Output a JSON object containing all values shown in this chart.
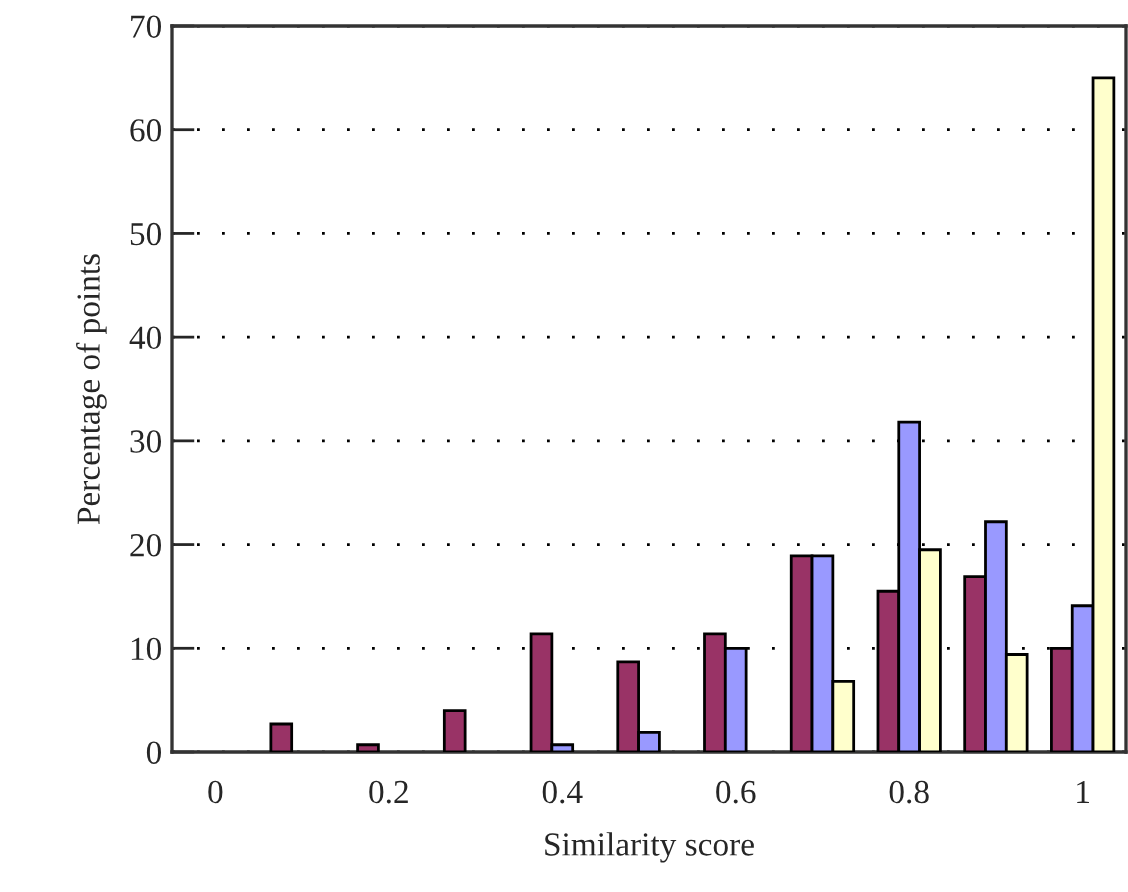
{
  "chart_data": {
    "type": "bar",
    "xlabel": "Similarity score",
    "ylabel": "Percentage of points",
    "categories": [
      "0",
      null,
      "0.2",
      null,
      "0.4",
      null,
      "0.6",
      null,
      "0.8",
      null,
      "1"
    ],
    "series": [
      {
        "color": "#993366",
        "values": [
          null,
          2.7,
          0.7,
          4.0,
          11.4,
          8.7,
          11.4,
          18.9,
          15.5,
          16.9,
          10.0
        ]
      },
      {
        "color": "#9999ff",
        "values": [
          null,
          null,
          null,
          null,
          0.7,
          1.9,
          10.0,
          18.9,
          31.8,
          22.2,
          14.1
        ]
      },
      {
        "color": "#ffffcc",
        "values": [
          null,
          null,
          null,
          null,
          null,
          null,
          null,
          6.8,
          19.5,
          9.4,
          65.0
        ]
      }
    ],
    "ylim": [
      0,
      70
    ],
    "yticks": [
      0,
      10,
      20,
      30,
      40,
      50,
      60,
      70
    ],
    "grid": "y",
    "legend": false
  }
}
